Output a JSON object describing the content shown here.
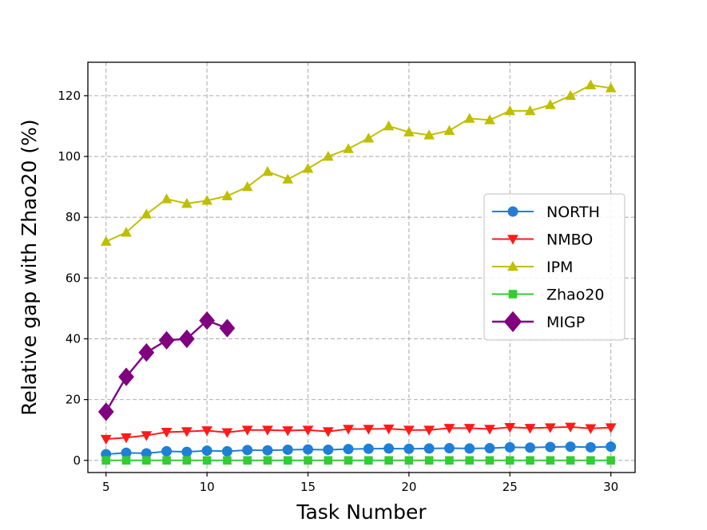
{
  "chart_data": {
    "type": "line",
    "title": "",
    "xlabel": "Task Number",
    "ylabel": "Relative gap with Zhao20 (%)",
    "xlim": [
      4.1,
      31.2
    ],
    "ylim": [
      -4,
      131
    ],
    "xticks": [
      5,
      10,
      15,
      20,
      25,
      30
    ],
    "yticks": [
      0,
      20,
      40,
      60,
      80,
      100,
      120
    ],
    "grid": true,
    "legend_position": "center-right",
    "series": [
      {
        "name": "NORTH",
        "color": "#1f7fd6",
        "marker": "circle",
        "x": [
          5,
          6,
          7,
          8,
          9,
          10,
          11,
          12,
          13,
          14,
          15,
          16,
          17,
          18,
          19,
          20,
          21,
          22,
          23,
          24,
          25,
          26,
          27,
          28,
          29,
          30
        ],
        "values": [
          2.0,
          2.5,
          2.3,
          3.0,
          2.8,
          3.2,
          3.0,
          3.4,
          3.3,
          3.5,
          3.6,
          3.5,
          3.7,
          3.8,
          3.9,
          3.8,
          3.9,
          4.0,
          3.9,
          4.0,
          4.3,
          4.2,
          4.4,
          4.5,
          4.3,
          4.5
        ]
      },
      {
        "name": "NMBO",
        "color": "#ff1a1a",
        "marker": "triangle-down",
        "x": [
          5,
          6,
          7,
          8,
          9,
          10,
          11,
          12,
          13,
          14,
          15,
          16,
          17,
          18,
          19,
          20,
          21,
          22,
          23,
          24,
          25,
          26,
          27,
          28,
          29,
          30
        ],
        "values": [
          7.0,
          7.5,
          8.2,
          9.3,
          9.5,
          9.8,
          9.2,
          10.0,
          10.0,
          9.8,
          10.0,
          9.5,
          10.3,
          10.3,
          10.4,
          10.0,
          10.0,
          10.6,
          10.6,
          10.3,
          10.9,
          10.6,
          10.8,
          11.0,
          10.5,
          10.8
        ]
      },
      {
        "name": "IPM",
        "color": "#bfbf00",
        "marker": "triangle-up",
        "x": [
          5,
          6,
          7,
          8,
          9,
          10,
          11,
          12,
          13,
          14,
          15,
          16,
          17,
          18,
          19,
          20,
          21,
          22,
          23,
          24,
          25,
          26,
          27,
          28,
          29,
          30
        ],
        "values": [
          72,
          75,
          81,
          86,
          84.5,
          85.5,
          87,
          90,
          95,
          92.5,
          96,
          100,
          102.5,
          106,
          110,
          108,
          107,
          108.5,
          112.5,
          112,
          115,
          115,
          117,
          120,
          123.5,
          122.5
        ]
      },
      {
        "name": "Zhao20",
        "color": "#33cc33",
        "marker": "square",
        "x": [
          5,
          6,
          7,
          8,
          9,
          10,
          11,
          12,
          13,
          14,
          15,
          16,
          17,
          18,
          19,
          20,
          21,
          22,
          23,
          24,
          25,
          26,
          27,
          28,
          29,
          30
        ],
        "values": [
          0,
          0,
          0,
          0,
          0,
          0,
          0,
          0,
          0,
          0,
          0,
          0,
          0,
          0,
          0,
          0,
          0,
          0,
          0,
          0,
          0,
          0,
          0,
          0,
          0,
          0
        ]
      },
      {
        "name": "MIGP",
        "color": "#800080",
        "marker": "diamond",
        "x": [
          5,
          6,
          7,
          8,
          9,
          10,
          11
        ],
        "values": [
          16,
          27.5,
          35.5,
          39.5,
          40,
          46,
          43.5
        ]
      }
    ]
  }
}
